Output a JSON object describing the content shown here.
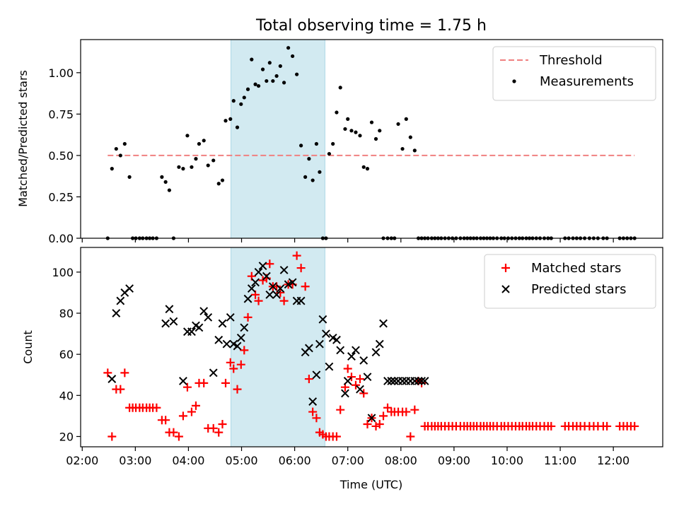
{
  "figure": {
    "title": "Total observing time = 1.75 h",
    "xlabel": "Time (UTC)"
  },
  "colors": {
    "threshold": "#f08080",
    "measurement": "#000000",
    "matched": "#ff0000",
    "predicted": "#000000",
    "highlight_fill": "#add8e6"
  },
  "chart_data": [
    {
      "type": "scatter",
      "ylabel": "Matched/Predicted stars",
      "xlim": [
        1.97,
        12.93
      ],
      "ylim": [
        0,
        1.2
      ],
      "x_ticks": [
        2,
        3,
        4,
        5,
        6,
        7,
        8,
        9,
        10,
        11,
        12
      ],
      "x_tick_labels": [
        "02:00",
        "03:00",
        "04:00",
        "05:00",
        "06:00",
        "07:00",
        "08:00",
        "09:00",
        "10:00",
        "11:00",
        "12:00"
      ],
      "y_ticks": [
        0,
        0.25,
        0.5,
        0.75,
        1.0
      ],
      "y_tick_labels": [
        "0.00",
        "0.25",
        "0.50",
        "0.75",
        "1.00"
      ],
      "highlight_span": [
        4.8,
        6.57
      ],
      "legend": {
        "loc": "upper right",
        "entries": [
          "Threshold",
          "Measurements"
        ]
      },
      "series": [
        {
          "name": "Threshold",
          "style": "dashed-line",
          "x": [
            2.48,
            12.4
          ],
          "y": [
            0.5,
            0.5
          ]
        },
        {
          "name": "Measurements",
          "style": "dot",
          "x": [
            2.48,
            2.56,
            2.64,
            2.72,
            2.8,
            2.89,
            2.95,
            3.01,
            3.08,
            3.14,
            3.21,
            3.27,
            3.33,
            3.4,
            3.5,
            3.57,
            3.64,
            3.72,
            3.82,
            3.9,
            3.98,
            4.06,
            4.14,
            4.2,
            4.29,
            4.37,
            4.47,
            4.57,
            4.64,
            4.7,
            4.79,
            4.85,
            4.92,
            4.99,
            5.05,
            5.12,
            5.19,
            5.26,
            5.32,
            5.4,
            5.47,
            5.53,
            5.59,
            5.66,
            5.73,
            5.8,
            5.88,
            5.96,
            6.04,
            6.12,
            6.2,
            6.27,
            6.34,
            6.41,
            6.47,
            6.53,
            6.59,
            6.65,
            6.72,
            6.79,
            6.86,
            6.95,
            7.0,
            7.07,
            7.15,
            7.23,
            7.3,
            7.37,
            7.45,
            7.53,
            7.6,
            7.67,
            7.75,
            7.82,
            7.88,
            7.95,
            8.03,
            8.1,
            8.18,
            8.26,
            8.33,
            8.39,
            8.45,
            8.51,
            8.58,
            8.64,
            8.7,
            8.76,
            8.83,
            8.9,
            8.97,
            9.04,
            9.12,
            9.19,
            9.25,
            9.31,
            9.37,
            9.43,
            9.5,
            9.56,
            9.62,
            9.68,
            9.74,
            9.81,
            9.89,
            9.95,
            10.02,
            10.09,
            10.16,
            10.23,
            10.29,
            10.36,
            10.42,
            10.48,
            10.55,
            10.62,
            10.7,
            10.77,
            10.83,
            11.09,
            11.16,
            11.24,
            11.31,
            11.38,
            11.46,
            11.55,
            11.63,
            11.71,
            11.81,
            11.88,
            12.12,
            12.19,
            12.26,
            12.33,
            12.4
          ],
          "y": [
            0.0,
            0.42,
            0.54,
            0.5,
            0.57,
            0.37,
            0.0,
            0.0,
            0.0,
            0.0,
            0.0,
            0.0,
            0.0,
            0.0,
            0.37,
            0.34,
            0.29,
            0.0,
            0.43,
            0.42,
            0.62,
            0.43,
            0.48,
            0.57,
            0.59,
            0.44,
            0.47,
            0.33,
            0.35,
            0.71,
            0.72,
            0.83,
            0.67,
            0.81,
            0.85,
            0.9,
            1.08,
            0.93,
            0.92,
            1.02,
            0.95,
            1.06,
            0.95,
            0.98,
            1.04,
            0.94,
            1.15,
            1.1,
            0.99,
            0.56,
            0.37,
            0.48,
            0.35,
            0.57,
            0.4,
            0.0,
            0.0,
            0.51,
            0.57,
            0.76,
            0.91,
            0.66,
            0.72,
            0.65,
            0.64,
            0.62,
            0.43,
            0.42,
            0.7,
            0.6,
            0.65,
            0.0,
            0.0,
            0.0,
            0.0,
            0.69,
            0.54,
            0.72,
            0.61,
            0.53,
            0.0,
            0.0,
            0.0,
            0.0,
            0.0,
            0.0,
            0.0,
            0.0,
            0.0,
            0.0,
            0.0,
            0.0,
            0.0,
            0.0,
            0.0,
            0.0,
            0.0,
            0.0,
            0.0,
            0.0,
            0.0,
            0.0,
            0.0,
            0.0,
            0.0,
            0.0,
            0.0,
            0.0,
            0.0,
            0.0,
            0.0,
            0.0,
            0.0,
            0.0,
            0.0,
            0.0,
            0.0,
            0.0,
            0.0,
            0.0,
            0.0,
            0.0,
            0.0,
            0.0,
            0.0,
            0.0,
            0.0,
            0.0,
            0.0,
            0.0,
            0.0,
            0.0,
            0.0,
            0.0,
            0.0
          ]
        }
      ]
    },
    {
      "type": "scatter",
      "ylabel": "Count",
      "xlim": [
        1.97,
        12.93
      ],
      "ylim": [
        15,
        112
      ],
      "x_ticks": [
        2,
        3,
        4,
        5,
        6,
        7,
        8,
        9,
        10,
        11,
        12
      ],
      "x_tick_labels": [
        "02:00",
        "03:00",
        "04:00",
        "05:00",
        "06:00",
        "07:00",
        "08:00",
        "09:00",
        "10:00",
        "11:00",
        "12:00"
      ],
      "y_ticks": [
        20,
        40,
        60,
        80,
        100
      ],
      "y_tick_labels": [
        "20",
        "40",
        "60",
        "80",
        "100"
      ],
      "highlight_span": [
        4.8,
        6.57
      ],
      "legend": {
        "loc": "upper right",
        "entries": [
          "Matched stars",
          "Predicted stars"
        ]
      },
      "series": [
        {
          "name": "Matched stars",
          "marker": "plus",
          "x": [
            2.48,
            2.56,
            2.64,
            2.72,
            2.8,
            2.89,
            2.95,
            3.01,
            3.08,
            3.14,
            3.21,
            3.27,
            3.33,
            3.4,
            3.5,
            3.57,
            3.64,
            3.72,
            3.82,
            3.9,
            3.98,
            4.06,
            4.14,
            4.2,
            4.29,
            4.37,
            4.47,
            4.57,
            4.64,
            4.7,
            4.79,
            4.85,
            4.92,
            4.99,
            5.05,
            5.12,
            5.19,
            5.26,
            5.32,
            5.4,
            5.47,
            5.53,
            5.59,
            5.66,
            5.73,
            5.8,
            5.88,
            5.96,
            6.04,
            6.12,
            6.2,
            6.27,
            6.34,
            6.41,
            6.47,
            6.53,
            6.59,
            6.65,
            6.72,
            6.79,
            6.86,
            6.95,
            7.0,
            7.07,
            7.15,
            7.23,
            7.3,
            7.37,
            7.45,
            7.53,
            7.6,
            7.67,
            7.75,
            7.82,
            7.88,
            7.95,
            8.03,
            8.1,
            8.18,
            8.26,
            8.33,
            8.39,
            8.45,
            8.51,
            8.58,
            8.64,
            8.7,
            8.76,
            8.83,
            8.9,
            8.97,
            9.04,
            9.12,
            9.19,
            9.25,
            9.31,
            9.37,
            9.43,
            9.5,
            9.56,
            9.62,
            9.68,
            9.74,
            9.81,
            9.89,
            9.95,
            10.02,
            10.09,
            10.16,
            10.23,
            10.29,
            10.36,
            10.42,
            10.48,
            10.55,
            10.62,
            10.7,
            10.77,
            10.83,
            11.09,
            11.16,
            11.24,
            11.31,
            11.38,
            11.46,
            11.55,
            11.63,
            11.71,
            11.81,
            11.88,
            12.12,
            12.19,
            12.26,
            12.33,
            12.4
          ],
          "y": [
            51,
            20,
            43,
            43,
            51,
            34,
            34,
            34,
            34,
            34,
            34,
            34,
            34,
            34,
            28,
            28,
            22,
            22,
            20,
            30,
            44,
            32,
            35,
            46,
            46,
            24,
            24,
            22,
            26,
            46,
            56,
            53,
            43,
            55,
            62,
            78,
            98,
            89,
            86,
            96,
            97,
            104,
            93,
            93,
            90,
            86,
            94,
            94,
            108,
            102,
            93,
            48,
            32,
            29,
            22,
            21,
            20,
            20,
            20,
            20,
            33,
            44,
            53,
            49,
            45,
            48,
            41,
            26,
            29,
            25,
            26,
            30,
            34,
            32,
            32,
            32,
            32,
            32,
            20,
            33,
            47,
            46,
            25,
            25,
            25,
            25,
            25,
            25,
            25,
            25,
            25,
            25,
            25,
            25,
            25,
            25,
            25,
            25,
            25,
            25,
            25,
            25,
            25,
            25,
            25,
            25,
            25,
            25,
            25,
            25,
            25,
            25,
            25,
            25,
            25,
            25,
            25,
            25,
            25,
            25,
            25,
            25,
            25,
            25,
            25,
            25,
            25,
            25,
            25,
            25,
            25,
            25,
            25,
            25,
            25
          ]
        },
        {
          "name": "Predicted stars",
          "marker": "x",
          "x": [
            2.56,
            2.64,
            2.72,
            2.8,
            2.89,
            3.57,
            3.64,
            3.72,
            3.9,
            3.98,
            4.06,
            4.14,
            4.2,
            4.29,
            4.37,
            4.47,
            4.57,
            4.64,
            4.72,
            4.79,
            4.85,
            4.92,
            4.99,
            5.05,
            5.12,
            5.19,
            5.26,
            5.32,
            5.4,
            5.47,
            5.53,
            5.59,
            5.66,
            5.73,
            5.8,
            5.88,
            5.96,
            6.04,
            6.12,
            6.2,
            6.27,
            6.34,
            6.41,
            6.47,
            6.53,
            6.59,
            6.65,
            6.72,
            6.79,
            6.86,
            6.95,
            7.0,
            7.07,
            7.15,
            7.23,
            7.3,
            7.37,
            7.45,
            7.53,
            7.6,
            7.67,
            7.75,
            7.82,
            7.88,
            7.95,
            8.03,
            8.1,
            8.18,
            8.26,
            8.33,
            8.39,
            8.45
          ],
          "y": [
            48,
            80,
            86,
            90,
            92,
            75,
            82,
            76,
            47,
            71,
            71,
            74,
            73,
            81,
            78,
            51,
            67,
            75,
            65,
            78,
            65,
            64,
            68,
            73,
            87,
            92,
            95,
            100,
            103,
            98,
            89,
            93,
            89,
            92,
            101,
            94,
            95,
            86,
            86,
            61,
            63,
            37,
            50,
            65,
            77,
            70,
            54,
            68,
            67,
            62,
            41,
            47,
            59,
            62,
            43,
            57,
            49,
            29,
            61,
            65,
            75,
            47,
            47,
            47,
            47,
            47,
            47,
            47,
            47,
            47,
            47,
            47
          ]
        }
      ]
    }
  ]
}
